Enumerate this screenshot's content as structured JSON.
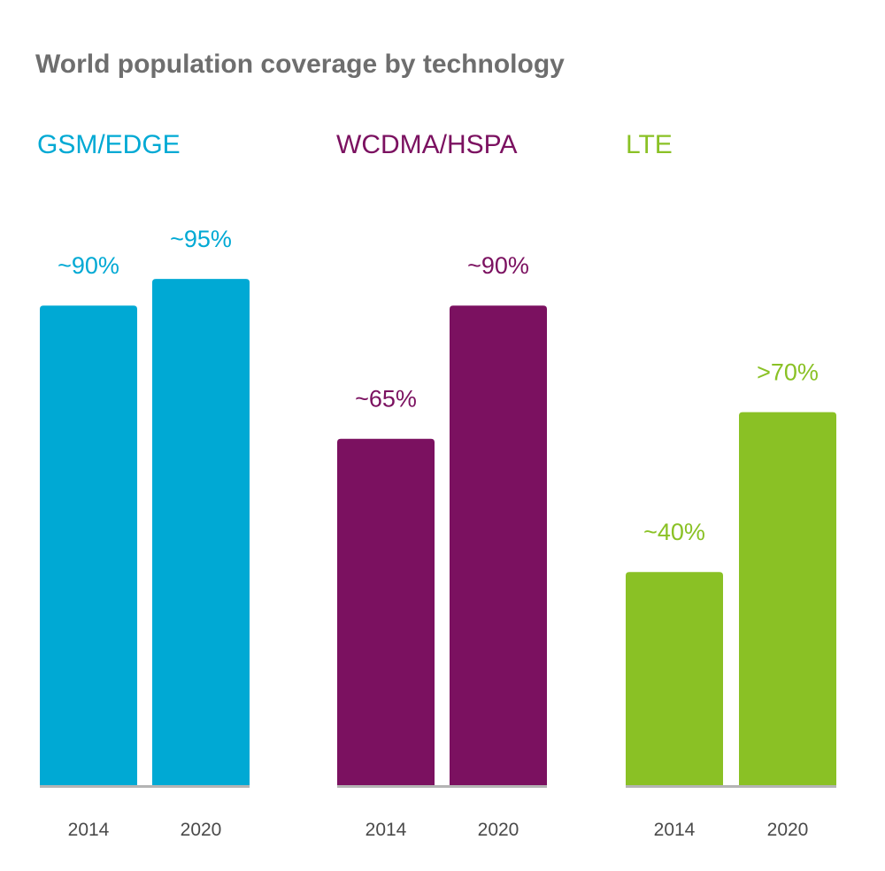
{
  "chart_data": {
    "type": "bar",
    "title": "World population coverage by technology",
    "categories": [
      "2014",
      "2020"
    ],
    "ylim": [
      0,
      100
    ],
    "xlabel": "",
    "ylabel": "",
    "groups": [
      {
        "name": "GSM/EDGE",
        "color": "#00a9d4",
        "values": [
          90,
          95
        ],
        "labels": [
          "~90%",
          "~95%"
        ]
      },
      {
        "name": "WCDMA/HSPA",
        "color": "#7b1160",
        "values": [
          65,
          90
        ],
        "labels": [
          "~65%",
          "~90%"
        ]
      },
      {
        "name": "LTE",
        "color": "#8ac125",
        "values": [
          40,
          70
        ],
        "labels": [
          "~40%",
          ">70%"
        ]
      }
    ],
    "baseline_color": "#b4b4b4"
  }
}
